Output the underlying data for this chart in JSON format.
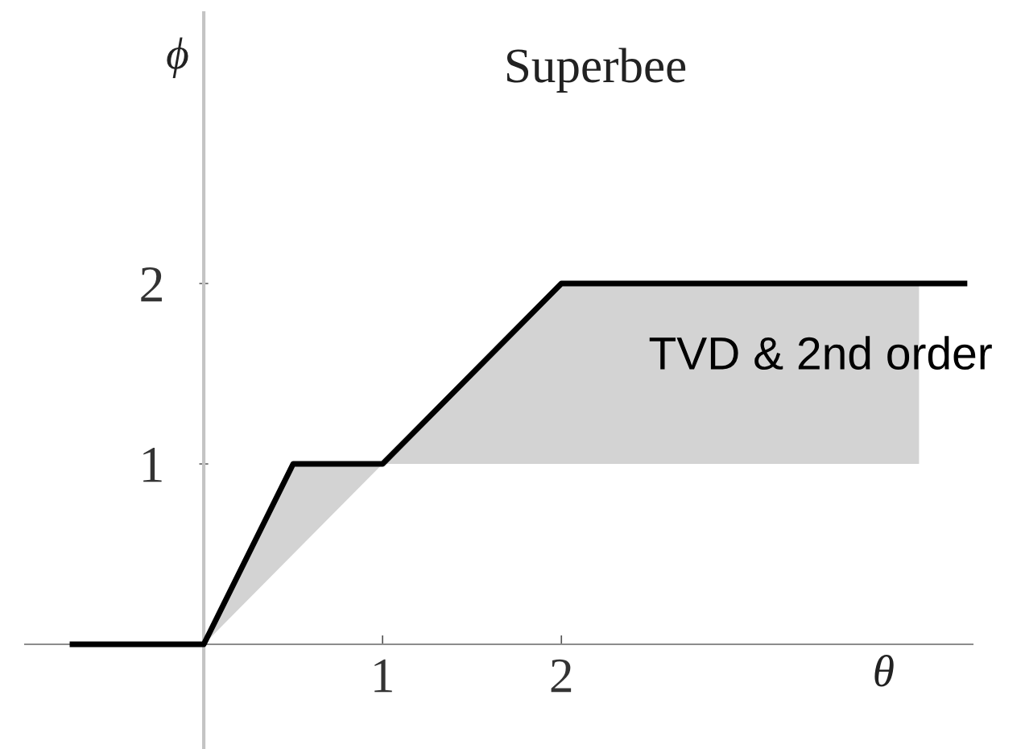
{
  "chart_data": {
    "type": "line",
    "title": "Superbee",
    "xlabel": "θ",
    "ylabel": "ϕ",
    "annotations": [
      "TVD & 2nd order"
    ],
    "xlim": [
      -1.0,
      4.3
    ],
    "ylim": [
      -0.58,
      3.5
    ],
    "xticks": [
      1,
      2
    ],
    "yticks": [
      1,
      2
    ],
    "series": [
      {
        "color": "#000000",
        "x": [
          -0.75,
          0,
          0.5,
          1,
          2,
          4.0,
          4.27
        ],
        "values": [
          0,
          0,
          1,
          1,
          2,
          2,
          2
        ],
        "lower": [
          null,
          0,
          0.5,
          1,
          1,
          1,
          null
        ],
        "upper": [
          null,
          0,
          1,
          1,
          2,
          2,
          null
        ]
      }
    ]
  }
}
